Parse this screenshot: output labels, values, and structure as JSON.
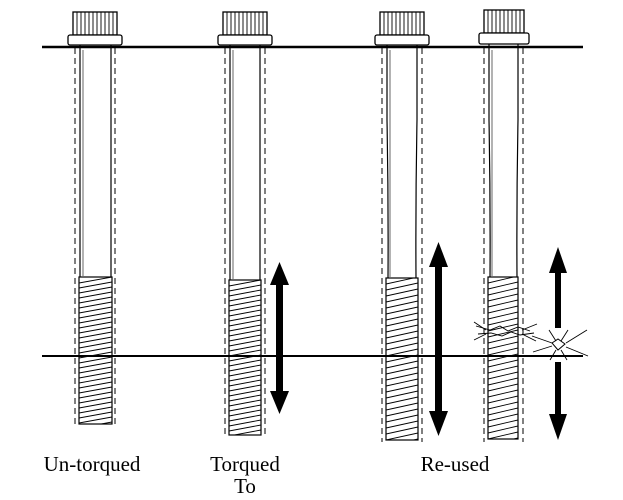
{
  "captions": {
    "untorqued": "Un-torqued",
    "torqued_line1": "Torqued",
    "torqued_line2": "To",
    "reused": "Re-used"
  },
  "colors": {
    "line": "#000000",
    "background": "#ffffff",
    "thread_fill": "#ffffff"
  },
  "icons": {
    "arrow": "double-arrow-icon",
    "fracture": "fracture-starburst-icon"
  }
}
